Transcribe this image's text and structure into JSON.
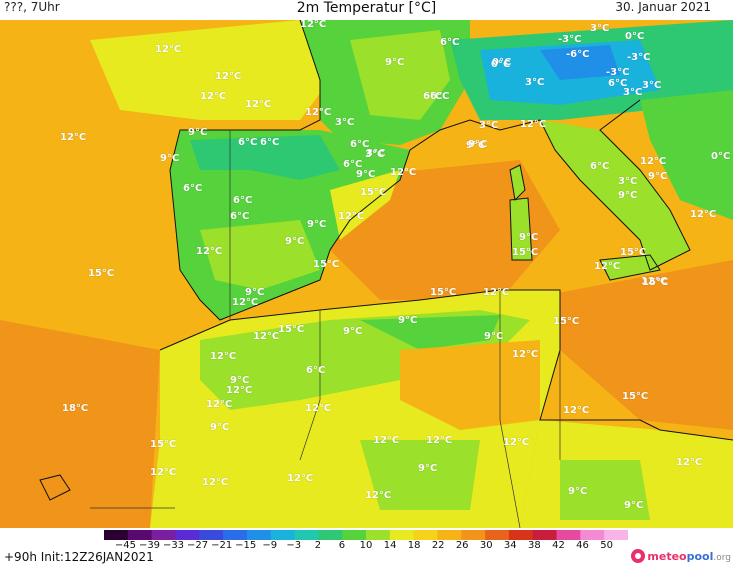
{
  "header": {
    "left_text": "???, 7Uhr",
    "title": "2m Temperatur [°C]",
    "date": "30. Januar 2021"
  },
  "footer": {
    "run_info": "+90h  Init:12Z26JAN2021",
    "brand": {
      "part1": "meteo",
      "part2": "pool",
      "part3": ".org"
    }
  },
  "scale": {
    "tick_labels": [
      "−45",
      "−39",
      "−33",
      "−27",
      "−21",
      "−15",
      "−9",
      "−3",
      "2",
      "6",
      "10",
      "14",
      "18",
      "22",
      "26",
      "30",
      "34",
      "38",
      "42",
      "46",
      "50"
    ],
    "colors": [
      "#2a0030",
      "#5a0a6e",
      "#7b1fa2",
      "#5b2bd6",
      "#3a4bdc",
      "#2a6de8",
      "#1f8fe8",
      "#19b2dc",
      "#20c8b0",
      "#2ec872",
      "#55d23c",
      "#9be02a",
      "#e6ea1e",
      "#f6d21a",
      "#f5b316",
      "#f0941a",
      "#e8641c",
      "#d83418",
      "#c81e3c",
      "#e64aa0",
      "#f48ad2",
      "#f8b4e8"
    ]
  },
  "map": {
    "colors": {
      "sea_warm": "#f0941a",
      "warm_orange": "#f5b316",
      "yellow": "#e6ea1e",
      "lime": "#9be02a",
      "green": "#55d23c",
      "green_dark": "#2ec872",
      "teal": "#20c8b0",
      "cyan": "#19b2dc",
      "blue": "#1f8fe8"
    },
    "labels": [
      {
        "id": "t01",
        "text": "12°C"
      },
      {
        "id": "t02",
        "text": "12°C"
      },
      {
        "id": "t03",
        "text": "12°C"
      },
      {
        "id": "t04",
        "text": "12°C"
      },
      {
        "id": "t05",
        "text": "12°C"
      },
      {
        "id": "t06",
        "text": "12°C"
      },
      {
        "id": "t07",
        "text": "9°C"
      },
      {
        "id": "t08",
        "text": "6°C"
      },
      {
        "id": "t09",
        "text": "6°C"
      },
      {
        "id": "t10",
        "text": "9°C"
      },
      {
        "id": "t11",
        "text": "3°C"
      },
      {
        "id": "t12",
        "text": "6°C"
      },
      {
        "id": "t13",
        "text": "12°C"
      },
      {
        "id": "t14",
        "text": "9°C"
      },
      {
        "id": "t15",
        "text": "3°C"
      },
      {
        "id": "t16",
        "text": "6°C"
      },
      {
        "id": "t17",
        "text": "9°C"
      },
      {
        "id": "t18",
        "text": "6°C"
      },
      {
        "id": "t19",
        "text": "3°C"
      },
      {
        "id": "t20",
        "text": "12°C"
      },
      {
        "id": "t21",
        "text": "6°C"
      },
      {
        "id": "t22",
        "text": "6°C"
      },
      {
        "id": "t23",
        "text": "15°C"
      },
      {
        "id": "t24",
        "text": "6°C"
      },
      {
        "id": "t25",
        "text": "12°C"
      },
      {
        "id": "t26",
        "text": "9°C"
      },
      {
        "id": "t27",
        "text": "9°C"
      },
      {
        "id": "t28",
        "text": "12°C"
      },
      {
        "id": "t29",
        "text": "15°C"
      },
      {
        "id": "t30",
        "text": "15°C"
      },
      {
        "id": "t31",
        "text": "9°C"
      },
      {
        "id": "t32",
        "text": "12°C"
      },
      {
        "id": "t33",
        "text": "15°C"
      },
      {
        "id": "t34",
        "text": "12°C"
      },
      {
        "id": "t35",
        "text": "15°C"
      },
      {
        "id": "t36",
        "text": "12°C"
      },
      {
        "id": "t37",
        "text": "9°C"
      },
      {
        "id": "t38",
        "text": "9°C"
      },
      {
        "id": "t39",
        "text": "12°C"
      },
      {
        "id": "t40",
        "text": "9°C"
      },
      {
        "id": "t41",
        "text": "12°C"
      },
      {
        "id": "t42",
        "text": "15°C"
      },
      {
        "id": "t43",
        "text": "9°C"
      },
      {
        "id": "t44",
        "text": "6°C"
      },
      {
        "id": "t45",
        "text": "12°C"
      },
      {
        "id": "t46",
        "text": "18°C"
      },
      {
        "id": "t47",
        "text": "9°C"
      },
      {
        "id": "t48",
        "text": "12°C"
      },
      {
        "id": "t49",
        "text": "12°C"
      },
      {
        "id": "t50",
        "text": "15°C"
      },
      {
        "id": "t51",
        "text": "12°C"
      },
      {
        "id": "t52",
        "text": "12°C"
      },
      {
        "id": "t53",
        "text": "12°C"
      },
      {
        "id": "t54",
        "text": "9°C"
      },
      {
        "id": "t55",
        "text": "12°C"
      },
      {
        "id": "t56",
        "text": "12°C"
      },
      {
        "id": "t57",
        "text": "12°C"
      },
      {
        "id": "t58",
        "text": "12°C"
      },
      {
        "id": "t59",
        "text": "9°C"
      },
      {
        "id": "t60",
        "text": "12°C"
      },
      {
        "id": "t61",
        "text": "15°C"
      },
      {
        "id": "t62",
        "text": "12°C"
      },
      {
        "id": "t63",
        "text": "12°C"
      },
      {
        "id": "t64",
        "text": "9°C"
      },
      {
        "id": "t65",
        "text": "9°C"
      },
      {
        "id": "t66",
        "text": "9°C"
      },
      {
        "id": "t67",
        "text": "12°C"
      },
      {
        "id": "t68",
        "text": "15°C"
      },
      {
        "id": "t69",
        "text": "12°C"
      },
      {
        "id": "t70",
        "text": "9°C"
      },
      {
        "id": "t71",
        "text": "6°C"
      },
      {
        "id": "t72",
        "text": "3°C"
      },
      {
        "id": "t73",
        "text": "3°C"
      },
      {
        "id": "t74",
        "text": "12°C"
      },
      {
        "id": "t75",
        "text": "15°C"
      },
      {
        "id": "t76",
        "text": "12°C"
      },
      {
        "id": "t77",
        "text": "15°C"
      },
      {
        "id": "t78",
        "text": "6°C"
      },
      {
        "id": "t79",
        "text": "3°C"
      },
      {
        "id": "t80",
        "text": "0°C"
      },
      {
        "id": "t81",
        "text": "-3°C"
      },
      {
        "id": "t82",
        "text": "-6°C"
      },
      {
        "id": "t83",
        "text": "-3°C"
      },
      {
        "id": "t84",
        "text": "0°C"
      },
      {
        "id": "t85",
        "text": "-3°C"
      },
      {
        "id": "t86",
        "text": "0°C"
      },
      {
        "id": "t87",
        "text": "3°C"
      },
      {
        "id": "t88",
        "text": "6°C"
      },
      {
        "id": "t89",
        "text": "3°C"
      },
      {
        "id": "t90",
        "text": "3°C"
      },
      {
        "id": "t91",
        "text": "0°C"
      },
      {
        "id": "t92",
        "text": "9°C"
      },
      {
        "id": "t93",
        "text": "6°C"
      },
      {
        "id": "t94",
        "text": "6°C"
      },
      {
        "id": "t95",
        "text": "9°C"
      }
    ]
  }
}
